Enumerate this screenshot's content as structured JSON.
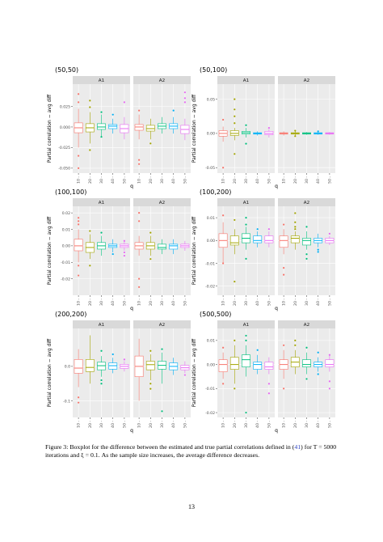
{
  "page": {
    "caption": {
      "prefix": "Figure 3: Boxplot for the difference between the estimated and true partial correlations defined in (",
      "ref": "41",
      "suffix": ") for T = 5000 iterations and ξ = 0.1. As the sample size increases, the average difference decreases."
    },
    "page_number": "13"
  },
  "colors": {
    "q10": "#F8766D",
    "q20": "#A3A500",
    "q30": "#00BF7D",
    "q40": "#00B0F6",
    "q50": "#E76BF3",
    "panel_bg": "#EBEBEB",
    "strip_bg": "#D9D9D9"
  },
  "chart_data": [
    {
      "type": "boxplot",
      "title": "(50,50)",
      "ylabel": "Partial correlation − avg diff",
      "xlabel": "q",
      "facets": [
        "A1",
        "A2"
      ],
      "categories": [
        "10",
        "20",
        "30",
        "40",
        "50"
      ],
      "ylim": [
        -0.056,
        0.052
      ],
      "yticks": [
        -0.05,
        -0.025,
        0.0,
        0.025
      ],
      "ytick_labels": [
        "-0.050",
        "-0.025",
        "0.000",
        "0.025"
      ],
      "boxes": [
        [
          {
            "q1": -0.007,
            "med": -0.001,
            "q3": 0.005,
            "lo": -0.025,
            "hi": 0.022,
            "out": [
              -0.05,
              -0.035,
              0.04,
              0.03
            ]
          },
          {
            "q1": -0.006,
            "med": -0.001,
            "q3": 0.004,
            "lo": -0.02,
            "hi": 0.018,
            "out": [
              -0.028,
              0.024,
              0.032
            ]
          },
          {
            "q1": -0.003,
            "med": 0.0,
            "q3": 0.004,
            "lo": -0.012,
            "hi": 0.015,
            "out": [
              -0.012,
              0.018
            ]
          },
          {
            "q1": -0.002,
            "med": 0.001,
            "q3": 0.003,
            "lo": -0.008,
            "hi": 0.01,
            "out": [
              0.015
            ]
          },
          {
            "q1": -0.007,
            "med": -0.002,
            "q3": 0.003,
            "lo": -0.015,
            "hi": 0.012,
            "out": [
              0.03
            ]
          }
        ],
        [
          {
            "q1": -0.004,
            "med": 0.0,
            "q3": 0.003,
            "lo": -0.015,
            "hi": 0.015,
            "out": [
              -0.045,
              -0.04,
              0.02
            ]
          },
          {
            "q1": -0.005,
            "med": -0.002,
            "q3": 0.002,
            "lo": -0.015,
            "hi": 0.01,
            "out": [
              -0.02
            ]
          },
          {
            "q1": -0.002,
            "med": 0.001,
            "q3": 0.004,
            "lo": -0.008,
            "hi": 0.012,
            "out": []
          },
          {
            "q1": -0.002,
            "med": 0.001,
            "q3": 0.004,
            "lo": -0.008,
            "hi": 0.012,
            "out": [
              0.02
            ]
          },
          {
            "q1": -0.008,
            "med": -0.003,
            "q3": 0.002,
            "lo": -0.016,
            "hi": 0.01,
            "out": [
              0.035,
              0.042,
              0.03
            ]
          }
        ]
      ]
    },
    {
      "type": "boxplot",
      "title": "(50,100)",
      "ylabel": "Partial correlation − avg diff",
      "xlabel": "q",
      "facets": [
        "A1",
        "A2"
      ],
      "categories": [
        "10",
        "20",
        "30",
        "40",
        "50"
      ],
      "ylim": [
        -0.058,
        0.072
      ],
      "yticks": [
        -0.05,
        0.0,
        0.05
      ],
      "ytick_labels": [
        "-0.05",
        "0.00",
        "0.05"
      ],
      "boxes": [
        [
          {
            "q1": -0.004,
            "med": 0.0,
            "q3": 0.004,
            "lo": -0.012,
            "hi": 0.01,
            "out": [
              -0.05,
              0.02
            ]
          },
          {
            "q1": -0.003,
            "med": 0.0,
            "q3": 0.004,
            "lo": -0.01,
            "hi": 0.008,
            "out": [
              -0.03,
              0.035,
              0.05,
              0.025,
              0.015
            ]
          },
          {
            "q1": -0.001,
            "med": 0.001,
            "q3": 0.003,
            "lo": -0.006,
            "hi": 0.008,
            "out": [
              -0.015,
              0.012
            ]
          },
          {
            "q1": -0.001,
            "med": 0.0,
            "q3": 0.001,
            "lo": -0.003,
            "hi": 0.003,
            "out": []
          },
          {
            "q1": -0.002,
            "med": 0.0,
            "q3": 0.003,
            "lo": -0.006,
            "hi": 0.006,
            "out": [
              0.008
            ]
          }
        ],
        [
          {
            "q1": -0.001,
            "med": 0.0,
            "q3": 0.001,
            "lo": -0.003,
            "hi": 0.003,
            "out": []
          },
          {
            "q1": -0.001,
            "med": 0.0,
            "q3": 0.001,
            "lo": -0.003,
            "hi": 0.003,
            "out": [
              0.004,
              -0.004
            ]
          },
          {
            "q1": -0.001,
            "med": 0.0,
            "q3": 0.001,
            "lo": -0.002,
            "hi": 0.002,
            "out": []
          },
          {
            "q1": -0.001,
            "med": 0.0,
            "q3": 0.001,
            "lo": -0.002,
            "hi": 0.002,
            "out": [
              0.003
            ]
          },
          {
            "q1": -0.001,
            "med": 0.0,
            "q3": 0.001,
            "lo": -0.002,
            "hi": 0.002,
            "out": []
          }
        ]
      ]
    },
    {
      "type": "boxplot",
      "title": "(100,100)",
      "ylabel": "Partial correlation − avg diff",
      "xlabel": "q",
      "facets": [
        "A1",
        "A2"
      ],
      "categories": [
        "10",
        "20",
        "30",
        "40",
        "50"
      ],
      "ylim": [
        -0.03,
        0.024
      ],
      "yticks": [
        -0.02,
        -0.01,
        0.0,
        0.01,
        0.02
      ],
      "ytick_labels": [
        "-0.02",
        "-0.01",
        "0.00",
        "0.01",
        "0.02"
      ],
      "boxes": [
        [
          {
            "q1": -0.003,
            "med": 0.0,
            "q3": 0.004,
            "lo": -0.01,
            "hi": 0.01,
            "out": [
              -0.018,
              -0.012,
              0.013,
              0.017,
              0.015
            ]
          },
          {
            "q1": -0.004,
            "med": -0.001,
            "q3": 0.002,
            "lo": -0.008,
            "hi": 0.007,
            "out": [
              -0.012,
              0.009
            ]
          },
          {
            "q1": -0.002,
            "med": 0.0,
            "q3": 0.002,
            "lo": -0.006,
            "hi": 0.006,
            "out": [
              0.008
            ]
          },
          {
            "q1": -0.001,
            "med": 0.0,
            "q3": 0.001,
            "lo": -0.004,
            "hi": 0.004,
            "out": [
              -0.005
            ]
          },
          {
            "q1": -0.001,
            "med": 0.0,
            "q3": 0.001,
            "lo": -0.003,
            "hi": 0.003,
            "out": [
              -0.006,
              -0.004,
              0.003
            ]
          }
        ],
        [
          {
            "q1": -0.002,
            "med": 0.0,
            "q3": 0.002,
            "lo": -0.006,
            "hi": 0.006,
            "out": [
              -0.025,
              -0.02,
              0.015,
              0.02
            ]
          },
          {
            "q1": -0.002,
            "med": 0.0,
            "q3": 0.002,
            "lo": -0.006,
            "hi": 0.006,
            "out": [
              0.008,
              -0.008
            ]
          },
          {
            "q1": -0.002,
            "med": -0.001,
            "q3": 0.001,
            "lo": -0.005,
            "hi": 0.004,
            "out": []
          },
          {
            "q1": -0.002,
            "med": 0.0,
            "q3": 0.001,
            "lo": -0.005,
            "hi": 0.004,
            "out": []
          },
          {
            "q1": -0.001,
            "med": 0.0,
            "q3": 0.001,
            "lo": -0.003,
            "hi": 0.003,
            "out": []
          }
        ]
      ]
    },
    {
      "type": "boxplot",
      "title": "(100,200)",
      "ylabel": "Partial correlation − avg diff",
      "xlabel": "q",
      "facets": [
        "A1",
        "A2"
      ],
      "categories": [
        "10",
        "20",
        "30",
        "40",
        "50"
      ],
      "ylim": [
        -0.024,
        0.015
      ],
      "yticks": [
        -0.02,
        -0.01,
        0.0,
        0.01
      ],
      "ytick_labels": [
        "-0.02",
        "-0.01",
        "0.00",
        "0.01"
      ],
      "boxes": [
        [
          {
            "q1": -0.003,
            "med": 0.0,
            "q3": 0.003,
            "lo": -0.01,
            "hi": 0.008,
            "out": [
              0.011,
              -0.01
            ]
          },
          {
            "q1": -0.002,
            "med": -0.001,
            "q3": 0.002,
            "lo": -0.006,
            "hi": 0.005,
            "out": [
              -0.018,
              0.009
            ]
          },
          {
            "q1": -0.001,
            "med": 0.001,
            "q3": 0.003,
            "lo": -0.004,
            "hi": 0.006,
            "out": [
              -0.008,
              0.01,
              0.007
            ]
          },
          {
            "q1": -0.001,
            "med": 0.0,
            "q3": 0.002,
            "lo": -0.003,
            "hi": 0.004,
            "out": [
              0.005
            ]
          },
          {
            "q1": -0.001,
            "med": 0.0,
            "q3": 0.002,
            "lo": -0.003,
            "hi": 0.004,
            "out": [
              0.005
            ]
          }
        ],
        [
          {
            "q1": -0.003,
            "med": 0.0,
            "q3": 0.002,
            "lo": -0.006,
            "hi": 0.005,
            "out": [
              -0.012,
              -0.015,
              0.007
            ]
          },
          {
            "q1": -0.001,
            "med": 0.001,
            "q3": 0.002,
            "lo": -0.004,
            "hi": 0.004,
            "out": [
              0.012,
              0.008,
              0.006,
              0.005
            ]
          },
          {
            "q1": -0.002,
            "med": 0.0,
            "q3": 0.001,
            "lo": -0.004,
            "hi": 0.004,
            "out": [
              -0.008,
              -0.006,
              0.006
            ]
          },
          {
            "q1": -0.001,
            "med": 0.0,
            "q3": 0.001,
            "lo": -0.003,
            "hi": 0.003,
            "out": [
              -0.005,
              -0.004
            ]
          },
          {
            "q1": -0.001,
            "med": 0.0,
            "q3": 0.001,
            "lo": -0.002,
            "hi": 0.002,
            "out": [
              0.003
            ]
          }
        ]
      ]
    },
    {
      "type": "boxplot",
      "title": "(200,200)",
      "ylabel": "Partial correlation − avg diff",
      "xlabel": "q",
      "facets": [
        "A1",
        "A2"
      ],
      "categories": [
        "10",
        "20",
        "30",
        "40",
        "50"
      ],
      "ylim": [
        -0.148,
        0.11
      ],
      "yticks": [
        -0.1,
        0.0
      ],
      "ytick_labels": [
        "-0.1",
        "0.0"
      ],
      "boxes": [
        [
          {
            "q1": -0.02,
            "med": -0.005,
            "q3": 0.02,
            "lo": -0.06,
            "hi": 0.05,
            "out": [
              -0.09,
              -0.105
            ]
          },
          {
            "q1": -0.015,
            "med": -0.003,
            "q3": 0.02,
            "lo": -0.05,
            "hi": 0.09,
            "out": []
          },
          {
            "q1": -0.01,
            "med": 0.002,
            "q3": 0.012,
            "lo": -0.03,
            "hi": 0.03,
            "out": [
              -0.04,
              -0.05,
              0.045
            ]
          },
          {
            "q1": -0.008,
            "med": 0.002,
            "q3": 0.01,
            "lo": -0.02,
            "hi": 0.025,
            "out": [
              0.035
            ]
          },
          {
            "q1": -0.006,
            "med": 0.0,
            "q3": 0.006,
            "lo": -0.015,
            "hi": 0.015,
            "out": [
              0.02
            ]
          }
        ],
        [
          {
            "q1": -0.03,
            "med": 0.0,
            "q3": 0.03,
            "lo": -0.1,
            "hi": 0.08,
            "out": []
          },
          {
            "q1": -0.01,
            "med": 0.005,
            "q3": 0.015,
            "lo": -0.04,
            "hi": 0.035,
            "out": [
              -0.05,
              -0.065,
              0.045
            ]
          },
          {
            "q1": -0.008,
            "med": 0.003,
            "q3": 0.015,
            "lo": -0.05,
            "hi": 0.04,
            "out": [
              -0.13,
              0.05
            ]
          },
          {
            "q1": -0.01,
            "med": 0.0,
            "q3": 0.01,
            "lo": -0.025,
            "hi": 0.025,
            "out": []
          },
          {
            "q1": -0.01,
            "med": -0.004,
            "q3": 0.003,
            "lo": -0.02,
            "hi": 0.015,
            "out": [
              -0.025
            ]
          }
        ]
      ]
    },
    {
      "type": "boxplot",
      "title": "(500,500)",
      "ylabel": "Partial correlation − avg diff",
      "xlabel": "q",
      "facets": [
        "A1",
        "A2"
      ],
      "categories": [
        "10",
        "20",
        "30",
        "40",
        "50"
      ],
      "ylim": [
        -0.022,
        0.015
      ],
      "yticks": [
        -0.02,
        -0.01,
        0.0,
        0.01
      ],
      "ytick_labels": [
        "-0.02",
        "-0.01",
        "0.00",
        "0.01"
      ],
      "boxes": [
        [
          {
            "q1": -0.003,
            "med": 0.0,
            "q3": 0.002,
            "lo": -0.006,
            "hi": 0.005,
            "out": [
              -0.008,
              0.007
            ]
          },
          {
            "q1": -0.002,
            "med": 0.0,
            "q3": 0.003,
            "lo": -0.008,
            "hi": 0.008,
            "out": [
              -0.01,
              0.01
            ]
          },
          {
            "q1": -0.001,
            "med": 0.002,
            "q3": 0.004,
            "lo": -0.005,
            "hi": 0.008,
            "out": [
              0.012,
              0.01,
              -0.02
            ]
          },
          {
            "q1": -0.002,
            "med": 0.0,
            "q3": 0.001,
            "lo": -0.004,
            "hi": 0.004,
            "out": [
              0.006
            ]
          },
          {
            "q1": -0.002,
            "med": -0.001,
            "q3": 0.001,
            "lo": -0.004,
            "hi": 0.003,
            "out": [
              -0.008,
              -0.012
            ]
          }
        ],
        [
          {
            "q1": -0.002,
            "med": 0.0,
            "q3": 0.002,
            "lo": -0.006,
            "hi": 0.006,
            "out": [
              -0.01,
              0.008
            ]
          },
          {
            "q1": -0.001,
            "med": 0.001,
            "q3": 0.003,
            "lo": -0.004,
            "hi": 0.006,
            "out": [
              0.01,
              0.008
            ]
          },
          {
            "q1": -0.001,
            "med": 0.0,
            "q3": 0.002,
            "lo": -0.004,
            "hi": 0.005,
            "out": [
              0.007,
              -0.006
            ]
          },
          {
            "q1": -0.001,
            "med": 0.0,
            "q3": 0.001,
            "lo": -0.003,
            "hi": 0.003,
            "out": [
              0.005,
              -0.004
            ]
          },
          {
            "q1": -0.001,
            "med": 0.0,
            "q3": 0.002,
            "lo": -0.003,
            "hi": 0.004,
            "out": [
              -0.007,
              -0.01,
              0.004
            ]
          }
        ]
      ]
    }
  ]
}
